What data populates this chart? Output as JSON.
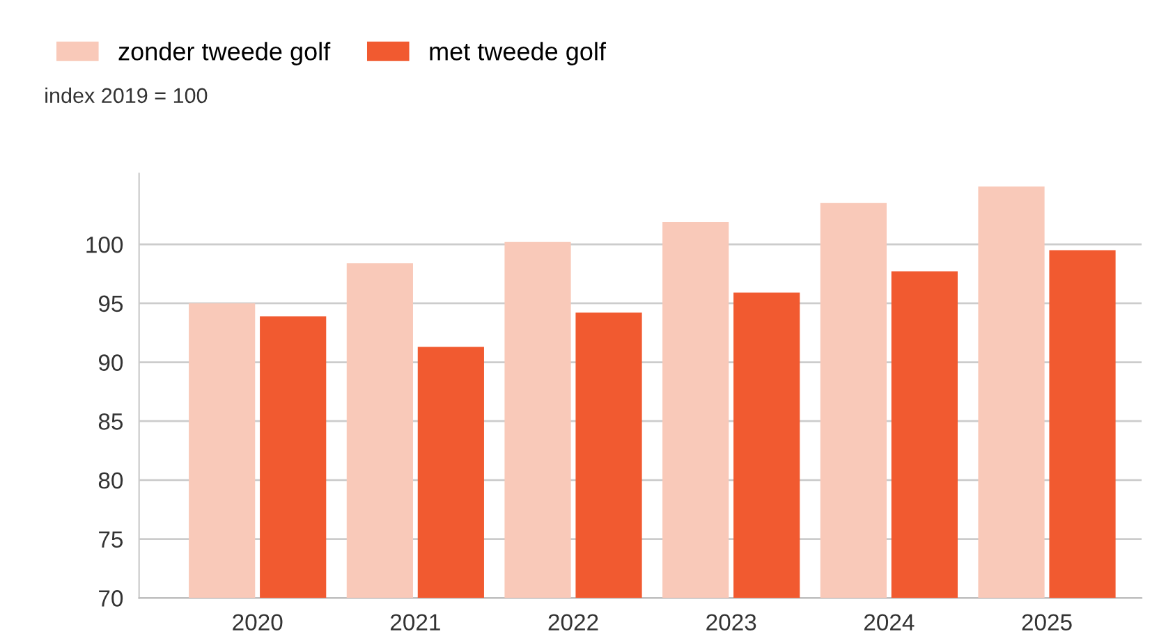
{
  "chart_data": {
    "type": "bar",
    "subtitle": "index 2019 = 100",
    "categories": [
      "2020",
      "2021",
      "2022",
      "2023",
      "2024",
      "2025"
    ],
    "series": [
      {
        "name": "zonder tweede golf",
        "color": "#f9c9b9",
        "values": [
          95.0,
          98.4,
          100.2,
          101.9,
          103.5,
          104.9
        ]
      },
      {
        "name": "met tweede golf",
        "color": "#f15a30",
        "values": [
          93.9,
          91.3,
          94.2,
          95.9,
          97.7,
          99.5
        ]
      }
    ],
    "ylim": [
      70,
      106
    ],
    "yticks": [
      70,
      75,
      80,
      85,
      90,
      95,
      100
    ],
    "grid": "y",
    "legend": "top left"
  }
}
